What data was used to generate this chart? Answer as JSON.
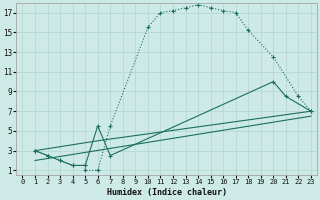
{
  "xlabel": "Humidex (Indice chaleur)",
  "xlim": [
    -0.5,
    23.5
  ],
  "ylim": [
    0.5,
    18
  ],
  "xticks": [
    0,
    1,
    2,
    3,
    4,
    5,
    6,
    7,
    8,
    9,
    10,
    11,
    12,
    13,
    14,
    15,
    16,
    17,
    18,
    19,
    20,
    21,
    22,
    23
  ],
  "yticks": [
    1,
    3,
    5,
    7,
    9,
    11,
    13,
    15,
    17
  ],
  "background_color": "#ceeae6",
  "line_color": "#1a6e62",
  "grid_color": "#b8d8d4",
  "line1_x": [
    1,
    2,
    3,
    4,
    5,
    5,
    6,
    7,
    10,
    11,
    12,
    13,
    14,
    15,
    16,
    17,
    18,
    20,
    22,
    23
  ],
  "line1_y": [
    3,
    2.5,
    2,
    1.5,
    1.5,
    1,
    1,
    5.5,
    15.5,
    17,
    17.2,
    17.5,
    17.8,
    17.5,
    17.2,
    17,
    15.2,
    12.5,
    8.5,
    7
  ],
  "line2_x": [
    1,
    2,
    3,
    4,
    5,
    6,
    7,
    20,
    21,
    23
  ],
  "line2_y": [
    3,
    2.5,
    2,
    1.5,
    1.5,
    5.5,
    2.5,
    10,
    8.5,
    7
  ],
  "line3_x": [
    1,
    6,
    23
  ],
  "line3_y": [
    3,
    4,
    7
  ],
  "line4_x": [
    1,
    23
  ],
  "line4_y": [
    2,
    6.5
  ]
}
